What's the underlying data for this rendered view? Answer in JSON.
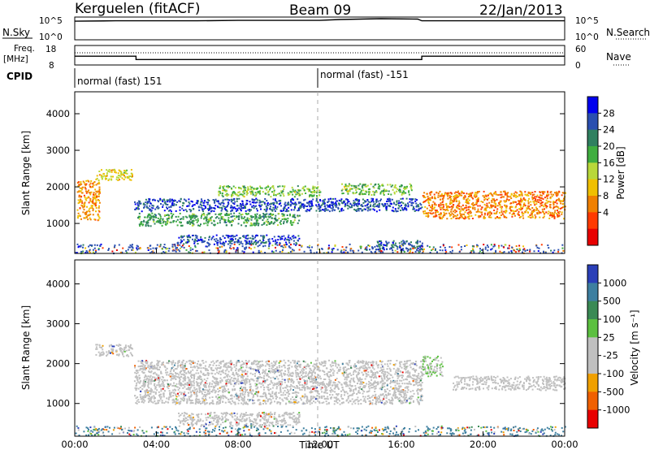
{
  "header": {
    "station": "Kerguelen (fitACF)",
    "beam": "Beam 09",
    "date": "22/Jan/2013"
  },
  "sky_panel": {
    "left_label": "N.Sky",
    "right_label": "N.Search",
    "left_ticks": [
      "10^5",
      "10^0"
    ],
    "right_ticks": [
      "10^5",
      "10^0"
    ]
  },
  "freq_panel": {
    "left_label_line1": "Freq.",
    "left_label_line2": "[MHz]",
    "right_label": "Nave",
    "left_ticks": [
      "18",
      "8"
    ],
    "right_ticks": [
      "60",
      "0"
    ]
  },
  "cpid": {
    "label": "CPID",
    "modes": [
      {
        "text": "normal (fast) 151",
        "start_hour": 0,
        "end_hour": 12
      },
      {
        "text": "normal (fast) -151",
        "start_hour": 12,
        "end_hour": 24
      }
    ]
  },
  "power_panel": {
    "ylabel": "Slant Range [km]",
    "yticks": [
      "4000",
      "3000",
      "2000",
      "1000"
    ],
    "colorbar_label": "Power [dB]",
    "colorbar_ticks": [
      "28",
      "24",
      "20",
      "16",
      "12",
      "8",
      "4"
    ],
    "colors": [
      "#0000ee",
      "#2a4fb0",
      "#2f8060",
      "#3fae3f",
      "#b8d83a",
      "#f0c000",
      "#f08000",
      "#ff3a00",
      "#e80000"
    ]
  },
  "velocity_panel": {
    "ylabel": "Slant Range [km]",
    "yticks": [
      "4000",
      "3000",
      "2000",
      "1000"
    ],
    "colorbar_label": "Velocity [m s⁻¹]",
    "colorbar_ticks": [
      "1000",
      "500",
      "100",
      "25",
      "-25",
      "-100",
      "-500",
      "-1000"
    ],
    "colors": [
      "#2a3fb8",
      "#3d7fa0",
      "#3a8a55",
      "#5cc040",
      "#c0c0c0",
      "#c0c0c0",
      "#f0a000",
      "#f06000",
      "#e80000"
    ],
    "ground_scatter_color": "#c0c0c0"
  },
  "time_axis": {
    "label": "Time UT",
    "ticks": [
      "00:00",
      "04:00",
      "08:00",
      "12:00",
      "16:00",
      "20:00",
      "00:00"
    ]
  },
  "chart_data": {
    "type": "heatmap",
    "title": "Kerguelen (fitACF)  Beam 09  22/Jan/2013",
    "xlabel": "Time UT",
    "ylabel": "Slant Range [km]",
    "xlim": [
      0,
      24
    ],
    "ylim": [
      180,
      4600
    ],
    "series": [
      {
        "name": "Power [dB]",
        "zlim": [
          0,
          32
        ],
        "regions": [
          {
            "t": [
              0.0,
              24.0
            ],
            "range": [
              200,
              450
            ],
            "z": 8,
            "kind": "noise"
          },
          {
            "t": [
              1.0,
              2.8
            ],
            "range": [
              2200,
              2500
            ],
            "z": 14
          },
          {
            "t": [
              0.1,
              1.2
            ],
            "range": [
              1100,
              2200
            ],
            "z": 10
          },
          {
            "t": [
              2.9,
              17.0
            ],
            "range": [
              1350,
              1700
            ],
            "z": 27
          },
          {
            "t": [
              3.0,
              11.0
            ],
            "range": [
              950,
              1300
            ],
            "z": 21
          },
          {
            "t": [
              5.0,
              11.0
            ],
            "range": [
              450,
              700
            ],
            "z": 27
          },
          {
            "t": [
              7.0,
              12.0
            ],
            "range": [
              1750,
              2050
            ],
            "z": 18
          },
          {
            "t": [
              13.0,
              16.5
            ],
            "range": [
              1800,
              2100
            ],
            "z": 18
          },
          {
            "t": [
              14.5,
              17.0
            ],
            "range": [
              300,
              550
            ],
            "z": 26
          },
          {
            "t": [
              17.0,
              24.0
            ],
            "range": [
              1150,
              1900
            ],
            "z": 9
          }
        ]
      },
      {
        "name": "Velocity [m s⁻¹]",
        "zlim": [
          -1000,
          1000
        ],
        "regions": [
          {
            "t": [
              0.0,
              24.0
            ],
            "range": [
              200,
              450
            ],
            "z": -200,
            "kind": "noise"
          },
          {
            "t": [
              1.0,
              2.8
            ],
            "range": [
              2200,
              2500
            ],
            "z": 0,
            "kind": "ground"
          },
          {
            "t": [
              2.9,
              17.0
            ],
            "range": [
              1000,
              2100
            ],
            "z": 0,
            "kind": "ground"
          },
          {
            "t": [
              5.0,
              11.0
            ],
            "range": [
              450,
              800
            ],
            "z": 0,
            "kind": "ground"
          },
          {
            "t": [
              17.0,
              18.0
            ],
            "range": [
              1700,
              2200
            ],
            "z": 80
          },
          {
            "t": [
              18.5,
              24.0
            ],
            "range": [
              1350,
              1700
            ],
            "z": -60
          }
        ]
      }
    ],
    "sky_noise_log10": [
      [
        0,
        4.4
      ],
      [
        2,
        4.5
      ],
      [
        4,
        4.5
      ],
      [
        6,
        4.5
      ],
      [
        8,
        4.6
      ],
      [
        10,
        4.6
      ],
      [
        12,
        4.6
      ],
      [
        13,
        4.8
      ],
      [
        15,
        5.0
      ],
      [
        16.8,
        4.9
      ],
      [
        17,
        4.5
      ],
      [
        24,
        4.5
      ]
    ],
    "frequency_mhz": [
      [
        0,
        12.5
      ],
      [
        3,
        12.5
      ],
      [
        3,
        10.8
      ],
      [
        17,
        10.8
      ],
      [
        17,
        12.5
      ],
      [
        24,
        12.5
      ]
    ],
    "grid": false
  }
}
